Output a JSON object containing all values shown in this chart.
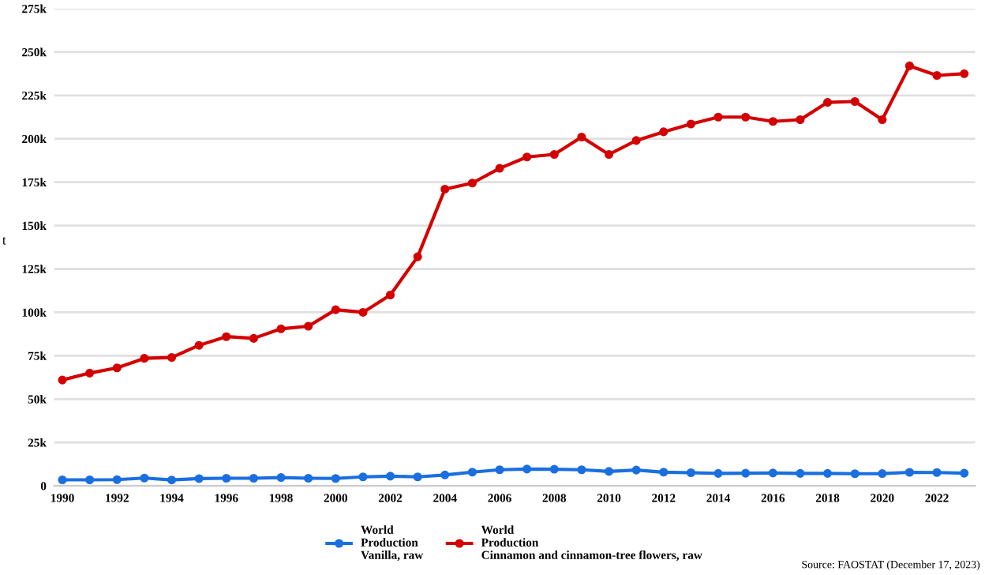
{
  "chart_data": {
    "type": "line",
    "ylabel": "t",
    "x": [
      1990,
      1991,
      1992,
      1993,
      1994,
      1995,
      1996,
      1997,
      1998,
      1999,
      2000,
      2001,
      2002,
      2003,
      2004,
      2005,
      2006,
      2007,
      2008,
      2009,
      2010,
      2011,
      2012,
      2013,
      2014,
      2015,
      2016,
      2017,
      2018,
      2019,
      2020,
      2021,
      2022,
      2023
    ],
    "series": [
      {
        "name": "World\nProduction\nVanilla, raw",
        "color": "#1a6fe0",
        "values": [
          3500,
          3500,
          3600,
          4500,
          3400,
          4200,
          4400,
          4400,
          4800,
          4400,
          4300,
          5200,
          5600,
          5200,
          6300,
          7900,
          9300,
          9700,
          9600,
          9300,
          8300,
          9100,
          7900,
          7600,
          7200,
          7300,
          7400,
          7200,
          7200,
          7000,
          7100,
          7800,
          7700,
          7300
        ]
      },
      {
        "name": "World\nProduction\nCinnamon and cinnamon-tree flowers, raw",
        "color": "#d40000",
        "values": [
          61000,
          65000,
          68000,
          73500,
          74000,
          81000,
          86000,
          85000,
          90500,
          92000,
          101500,
          100000,
          110000,
          132000,
          171000,
          174500,
          183000,
          189500,
          191000,
          201000,
          191000,
          199000,
          204000,
          208500,
          212500,
          212500,
          210000,
          211000,
          221000,
          221500,
          211000,
          242000,
          236500,
          237500
        ]
      }
    ],
    "xlim": [
      1989.7,
      2023.4
    ],
    "xticks": [
      1990,
      1992,
      1994,
      1996,
      1998,
      2000,
      2002,
      2004,
      2006,
      2008,
      2010,
      2012,
      2014,
      2016,
      2018,
      2020,
      2022
    ],
    "ylim": [
      0,
      275000
    ],
    "yticks": [
      {
        "value": 0,
        "label": "0"
      },
      {
        "value": 25000,
        "label": "25k"
      },
      {
        "value": 50000,
        "label": "50k"
      },
      {
        "value": 75000,
        "label": "75k"
      },
      {
        "value": 100000,
        "label": "100k"
      },
      {
        "value": 125000,
        "label": "125k"
      },
      {
        "value": 150000,
        "label": "150k"
      },
      {
        "value": 175000,
        "label": "175k"
      },
      {
        "value": 200000,
        "label": "200k"
      },
      {
        "value": 225000,
        "label": "225k"
      },
      {
        "value": 250000,
        "label": "250k"
      },
      {
        "value": 275000,
        "label": "275k"
      }
    ],
    "grid": "y",
    "legend": "bottom",
    "marker": "circle",
    "line_style": "solid",
    "annotations": [
      "Source: FAOSTAT (December 17, 2023)"
    ]
  }
}
